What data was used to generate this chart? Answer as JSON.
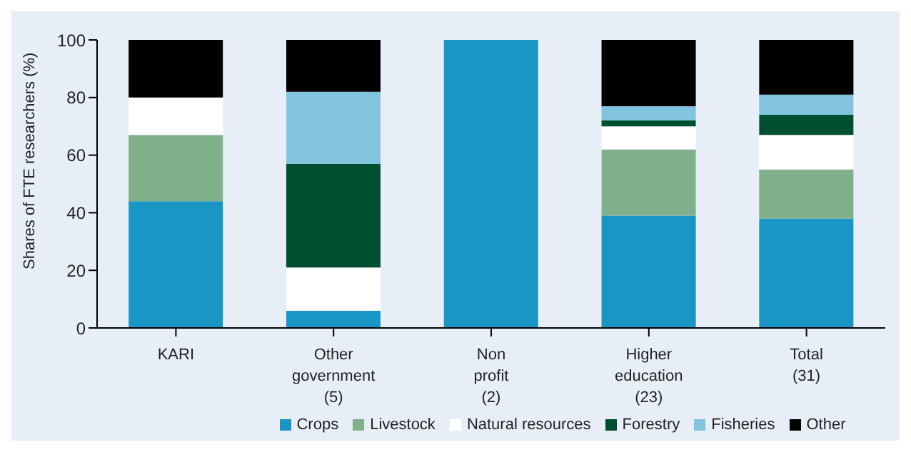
{
  "chart_data": {
    "type": "bar",
    "stacked": true,
    "ylabel": "Shares of FTE researchers (%)",
    "categories": [
      "KARI",
      "Other government (5)",
      "Non profit (2)",
      "Higher education (23)",
      "Total (31)"
    ],
    "series": [
      {
        "name": "Crops",
        "color": "#1a96c4",
        "values": [
          44,
          6,
          100,
          39,
          38
        ]
      },
      {
        "name": "Livestock",
        "color": "#80b08a",
        "values": [
          23,
          0,
          0,
          23,
          17
        ]
      },
      {
        "name": "Natural resources",
        "color": "#ffffff",
        "values": [
          13,
          15,
          0,
          8,
          12
        ]
      },
      {
        "name": "Forestry",
        "color": "#005030",
        "values": [
          0,
          36,
          0,
          2,
          7
        ]
      },
      {
        "name": "Fisheries",
        "color": "#82c3de",
        "values": [
          0,
          25,
          0,
          5,
          7
        ]
      },
      {
        "name": "Other",
        "color": "#000000",
        "values": [
          20,
          18,
          0,
          23,
          19
        ]
      }
    ],
    "ylim": [
      0,
      100
    ],
    "yticks": [
      0,
      20,
      40,
      60,
      80,
      100
    ],
    "grid": false,
    "legend": "bottom"
  }
}
